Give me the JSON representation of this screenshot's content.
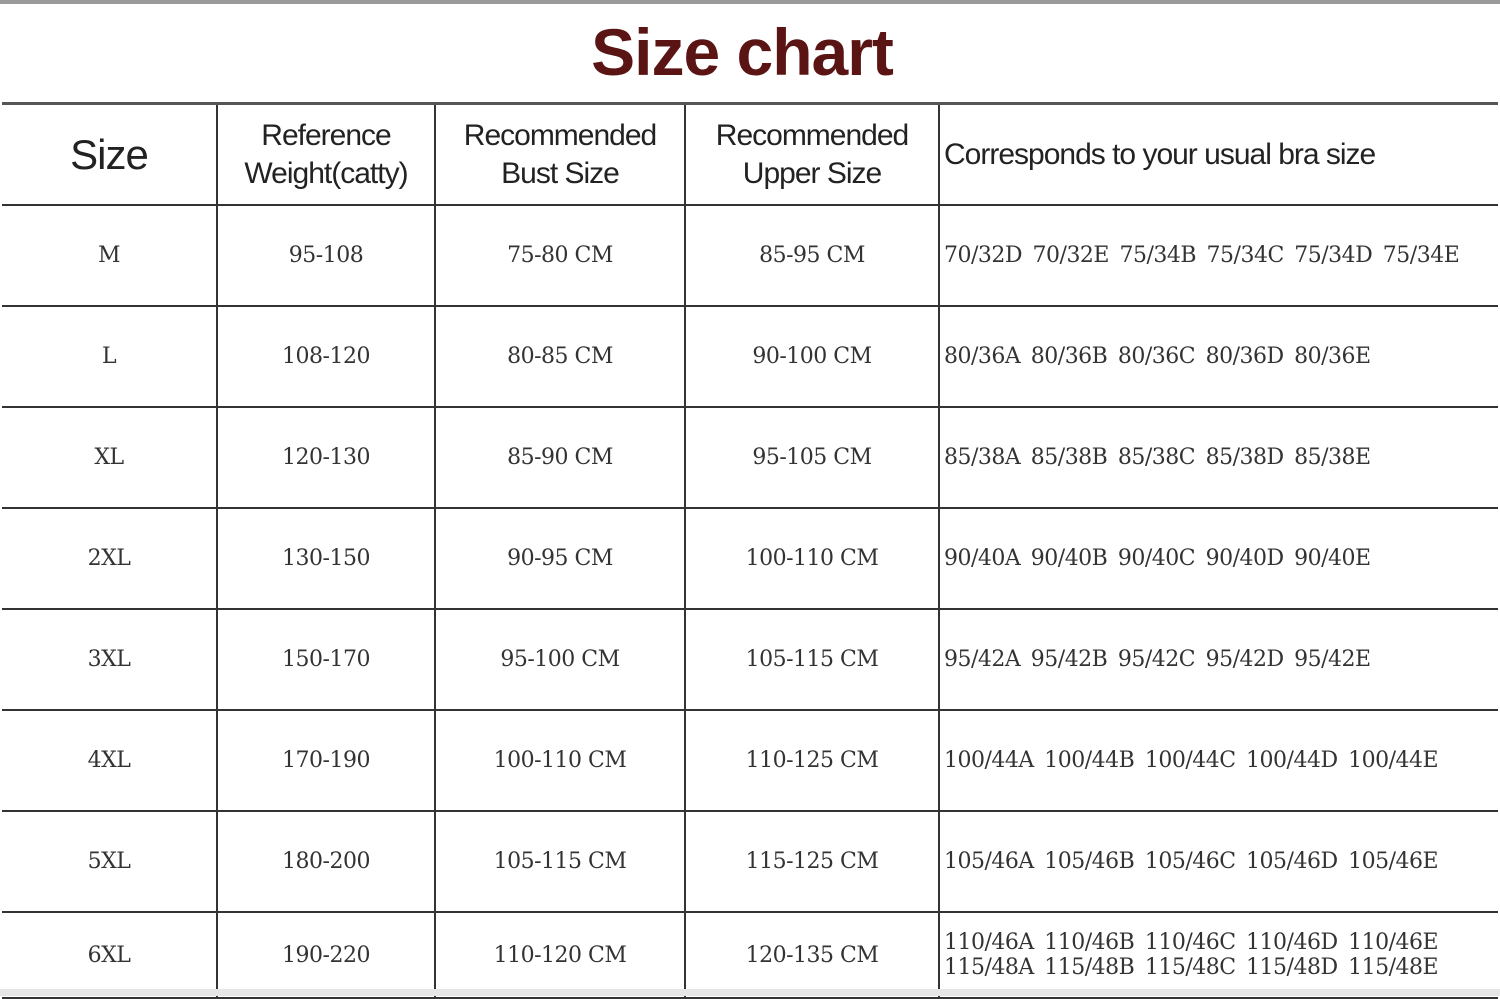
{
  "title": "Size chart",
  "headers": [
    "Size",
    "Reference Weight(catty)",
    "Recommended Bust Size",
    "Recommended Upper Size",
    "Corresponds to your usual bra size"
  ],
  "header_lines": {
    "weight": [
      "Reference",
      "Weight(catty)"
    ],
    "bust": [
      "Recommended",
      "Bust Size"
    ],
    "upper": [
      "Recommended",
      "Upper Size"
    ]
  },
  "rows": [
    {
      "size": "M",
      "weight": "95-108",
      "bust": "75-80 CM",
      "upper": "85-95 CM",
      "bra": [
        "70/32D 70/32E 75/34B 75/34C 75/34D 75/34E"
      ]
    },
    {
      "size": "L",
      "weight": "108-120",
      "bust": "80-85 CM",
      "upper": "90-100 CM",
      "bra": [
        "80/36A 80/36B 80/36C 80/36D 80/36E"
      ]
    },
    {
      "size": "XL",
      "weight": "120-130",
      "bust": "85-90 CM",
      "upper": "95-105 CM",
      "bra": [
        "85/38A 85/38B 85/38C 85/38D 85/38E"
      ]
    },
    {
      "size": "2XL",
      "weight": "130-150",
      "bust": "90-95 CM",
      "upper": "100-110 CM",
      "bra": [
        "90/40A 90/40B 90/40C 90/40D 90/40E"
      ]
    },
    {
      "size": "3XL",
      "weight": "150-170",
      "bust": "95-100 CM",
      "upper": "105-115 CM",
      "bra": [
        "95/42A 95/42B 95/42C 95/42D 95/42E"
      ]
    },
    {
      "size": "4XL",
      "weight": "170-190",
      "bust": "100-110 CM",
      "upper": "110-125 CM",
      "bra": [
        "100/44A 100/44B 100/44C 100/44D 100/44E"
      ]
    },
    {
      "size": "5XL",
      "weight": "180-200",
      "bust": "105-115 CM",
      "upper": "115-125 CM",
      "bra": [
        "105/46A 105/46B 105/46C 105/46D 105/46E"
      ]
    },
    {
      "size": "6XL",
      "weight": "190-220",
      "bust": "110-120 CM",
      "upper": "120-135 CM",
      "bra": [
        "110/46A 110/46B 110/46C 110/46D 110/46E",
        "115/48A 115/48B 115/48C 115/48D 115/48E"
      ]
    }
  ]
}
